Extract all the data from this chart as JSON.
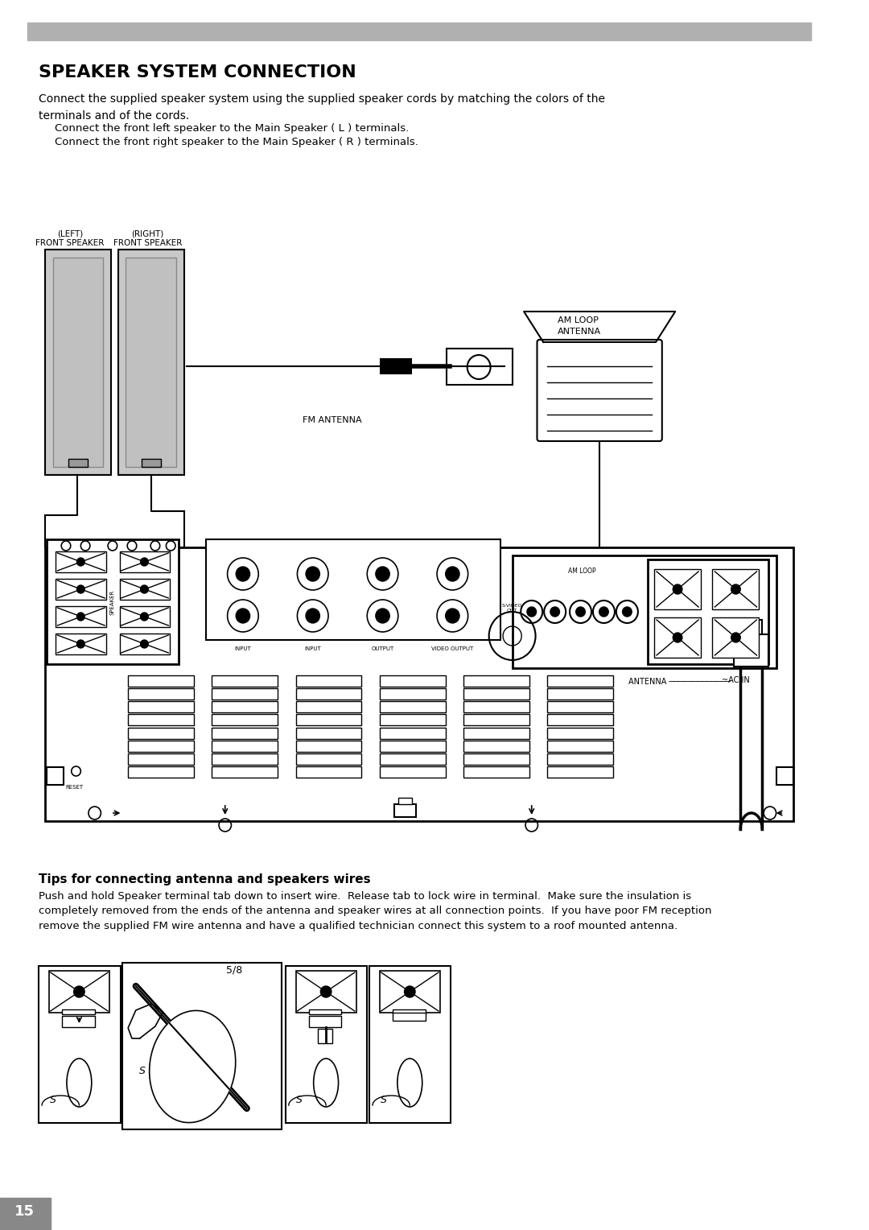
{
  "title": "SPEAKER SYSTEM CONNECTION",
  "header_bar_color": "#b0b0b0",
  "bg_color": "#ffffff",
  "body_text1": "Connect the supplied speaker system using the supplied speaker cords by matching the colors of the\nterminals and of the cords.",
  "bullet1": "Connect the front left speaker to the Main Speaker ( L ) terminals.",
  "bullet2": "Connect the front right speaker to the Main Speaker ( R ) terminals.",
  "left_label_line1": "(LEFT)",
  "left_label_line2": "FRONT SPEAKER",
  "right_label_line1": "(RIGHT)",
  "right_label_line2": "FRONT SPEAKER",
  "fm_antenna_label": "FM ANTENNA",
  "am_loop_label": "AM LOOP\nANTENNA",
  "antenna_label": "ANTENNA",
  "tips_title": "Tips for connecting antenna and speakers wires",
  "tips_body": "Push and hold Speaker terminal tab down to insert wire.  Release tab to lock wire in terminal.  Make sure the insulation is\ncompletely removed from the ends of the antenna and speaker wires at all connection points.  If you have poor FM reception\nremove the supplied FM wire antenna and have a qualified technician connect this system to a roof mounted antenna.",
  "page_number": "15"
}
